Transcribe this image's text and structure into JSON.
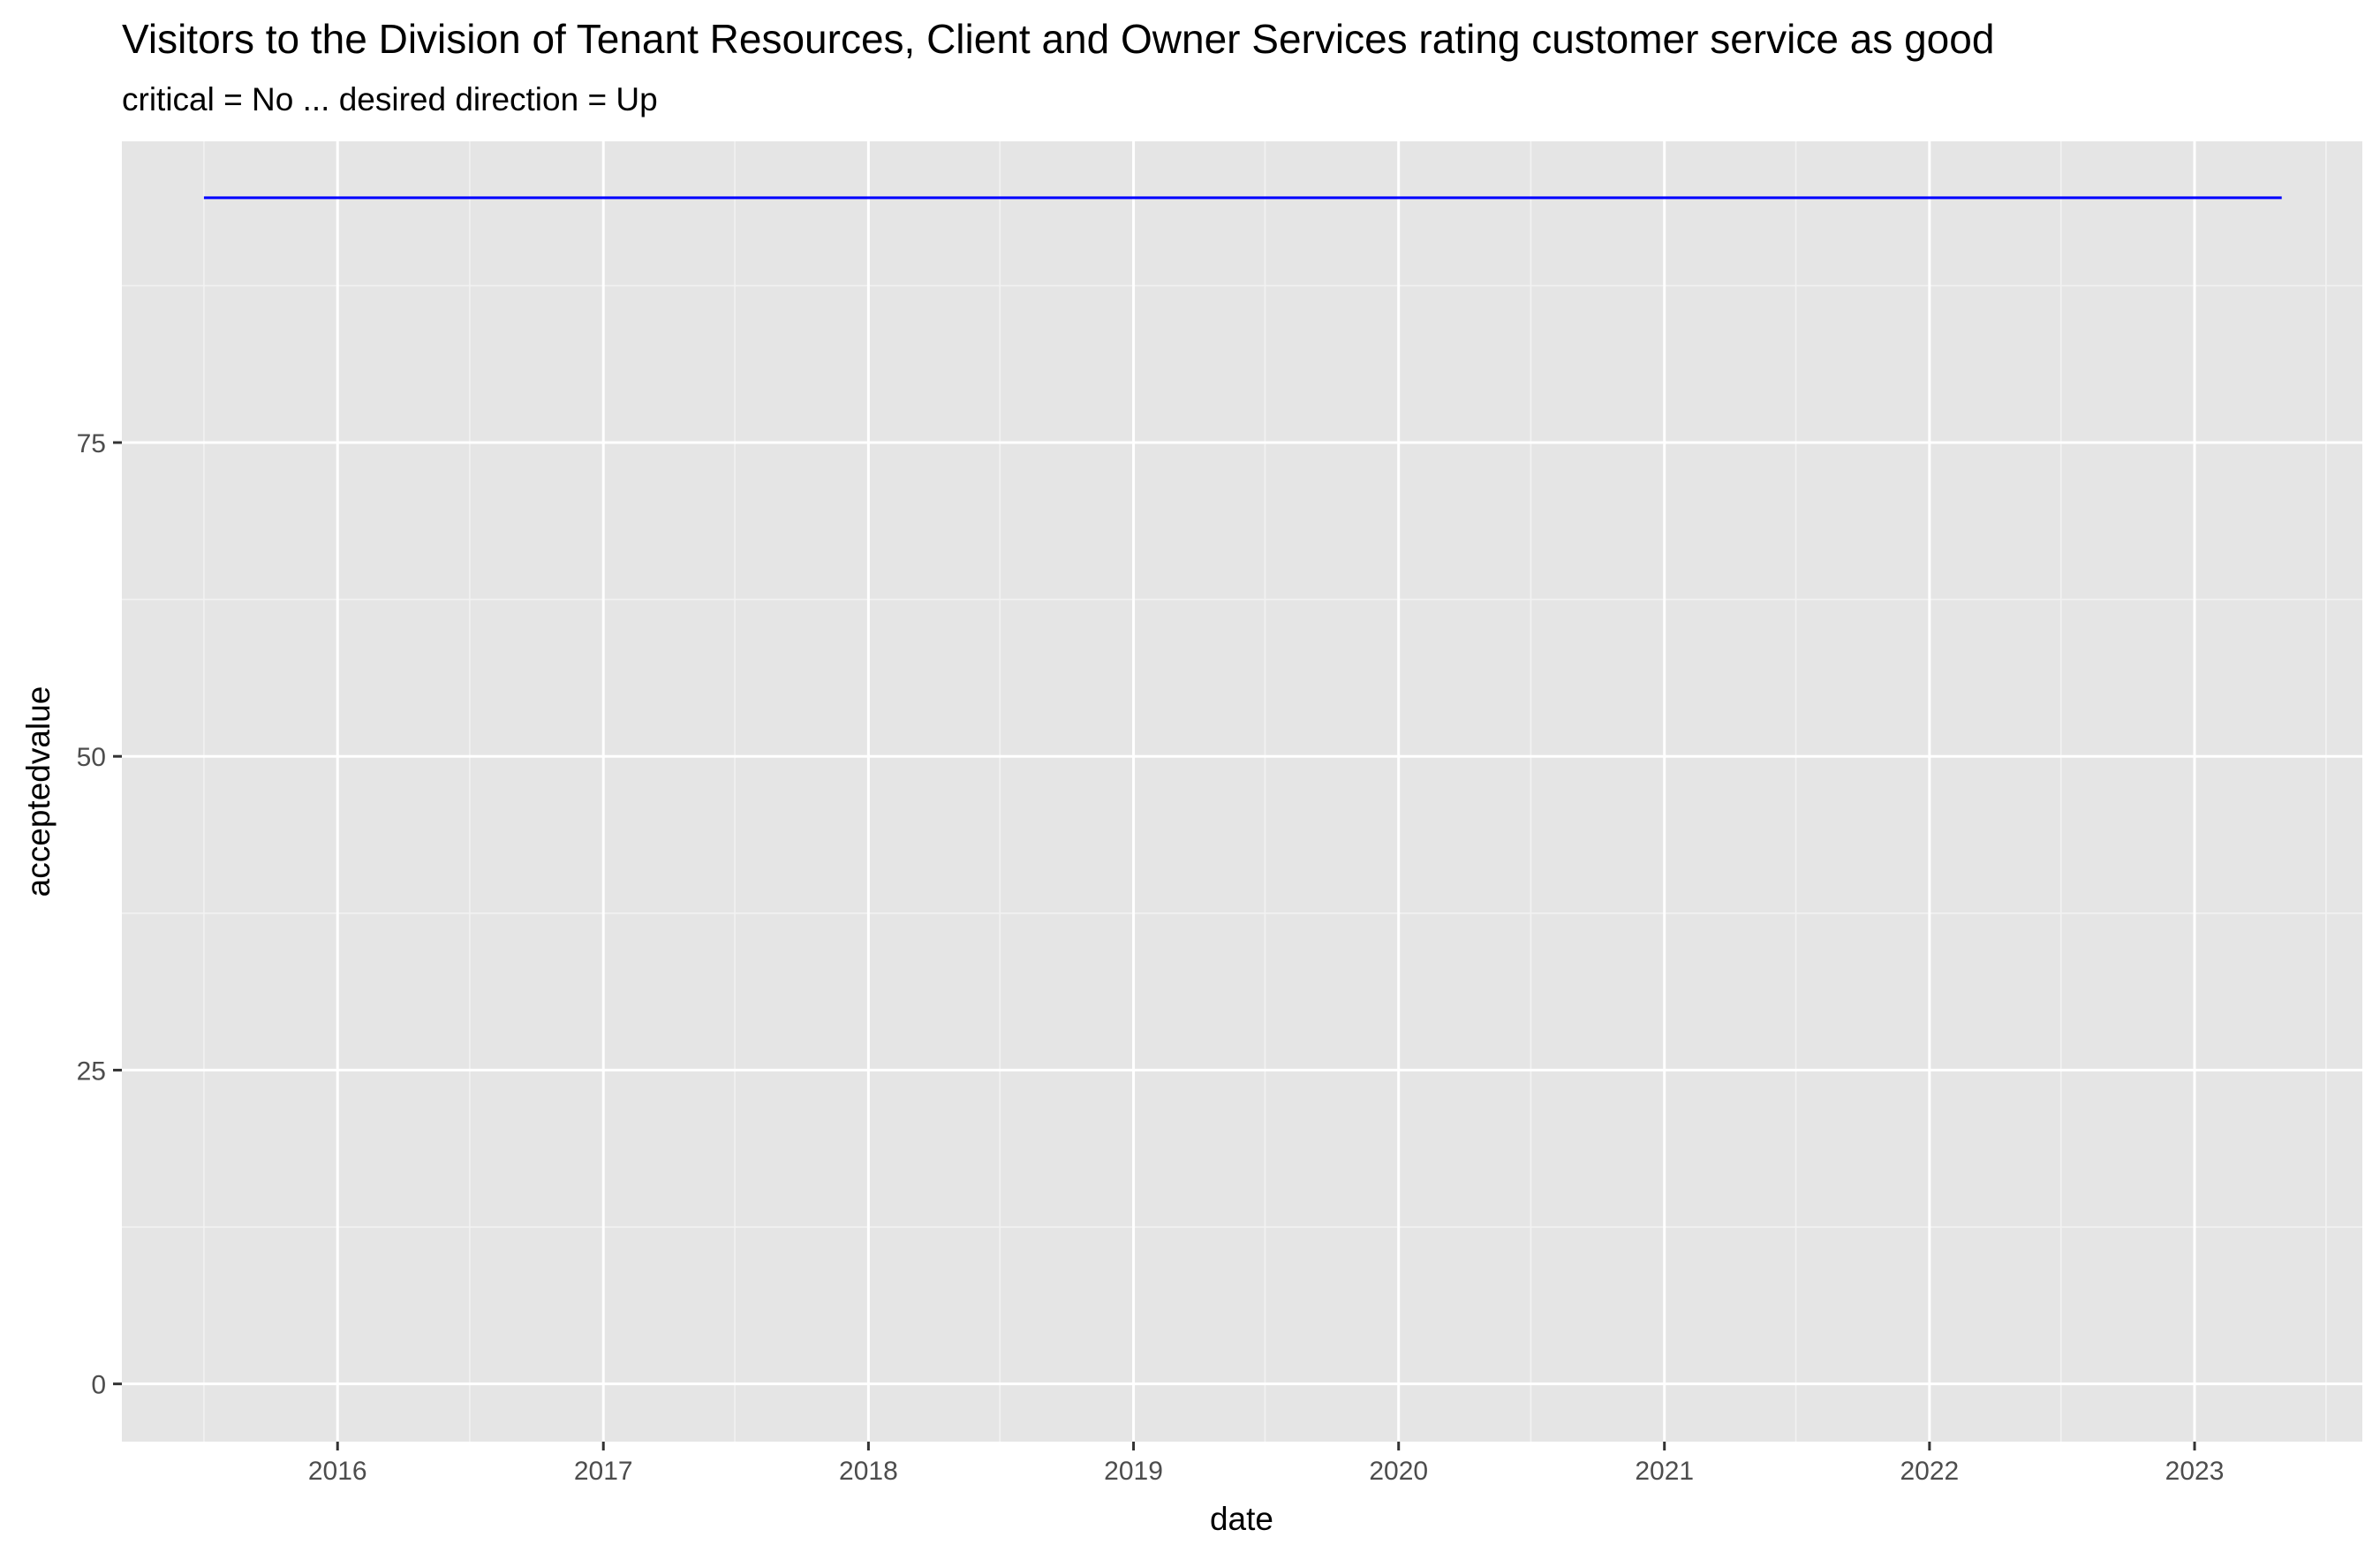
{
  "chart_data": {
    "type": "line",
    "title": "Visitors to the Division of Tenant Resources, Client and Owner Services rating customer service as good",
    "subtitle": "critical = No ... desired direction = Up",
    "xlabel": "date",
    "ylabel": "acceptedvalue",
    "x_ticks": [
      "2016",
      "2017",
      "2018",
      "2019",
      "2020",
      "2021",
      "2022",
      "2023"
    ],
    "y_ticks": [
      0,
      25,
      50,
      75
    ],
    "ylim": [
      -4.6,
      99
    ],
    "xlim": [
      "2015-03-10",
      "2023-08-20"
    ],
    "grid": true,
    "legend": "none",
    "series": [
      {
        "color": "#0000ff",
        "points": [
          {
            "x": "2015-07-01",
            "y": 94.5
          },
          {
            "x": "2023-05-01",
            "y": 94.5
          }
        ]
      }
    ]
  }
}
